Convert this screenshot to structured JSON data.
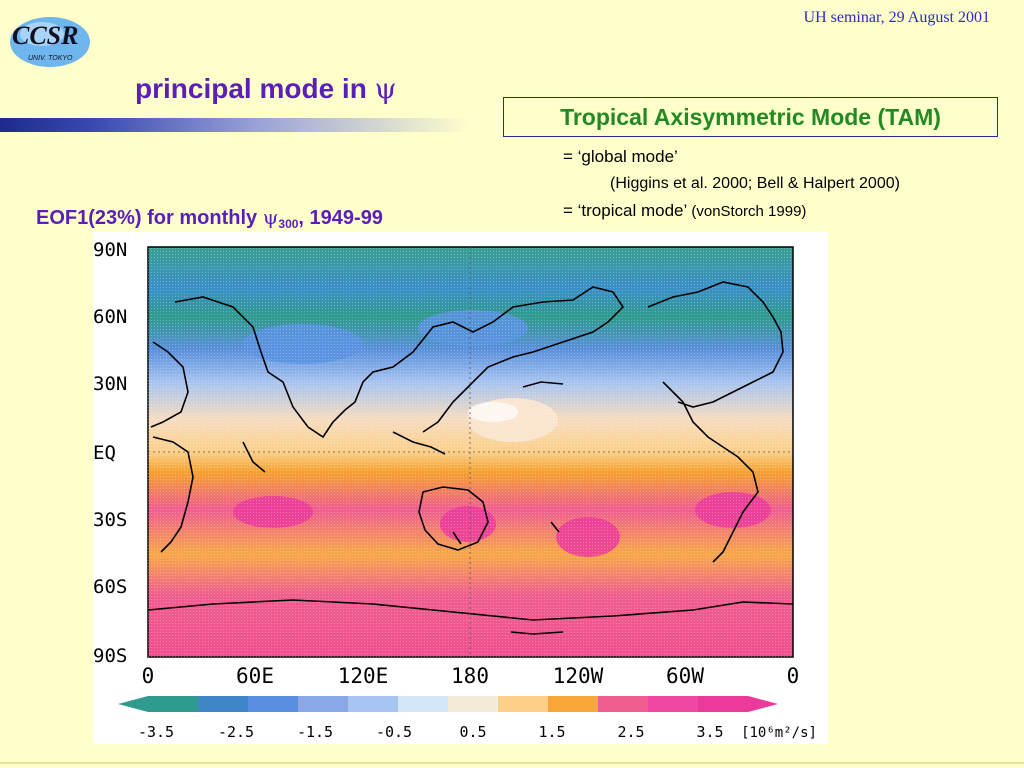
{
  "header": {
    "logo_text": "CCSR",
    "logo_subtext": "UNIV. TOKYO",
    "date": "UH seminar, 29 August 2001"
  },
  "title": {
    "text": "principal mode in",
    "symbol": "ψ"
  },
  "tam_box": {
    "label": "Tropical Axisymmetric Mode (TAM)"
  },
  "notes": {
    "line1": "= ‘global mode’",
    "line2": "(Higgins et al. 2000; Bell & Halpert 2000)",
    "line3_main": "= ‘tropical mode’",
    "line3_ref": "(vonStorch 1999)"
  },
  "eof_caption": {
    "prefix": "EOF1(23%) for monthly",
    "symbol": "ψ",
    "subscript": "300",
    "suffix": ", 1949-99"
  },
  "map": {
    "lat_labels": [
      "90N",
      "60N",
      "30N",
      "EQ",
      "30S",
      "60S",
      "90S"
    ],
    "lon_labels": [
      "0",
      "60E",
      "120E",
      "180",
      "120W",
      "60W",
      "0"
    ],
    "colorbar_ticks": [
      "-3.5",
      "-2.5",
      "-1.5",
      "-0.5",
      "0.5",
      "1.5",
      "2.5",
      "3.5"
    ],
    "colorbar_unit": "[10⁶m²/s]",
    "colorbar_colors": [
      "#2f9a8e",
      "#3f86c8",
      "#5a8ede",
      "#8aa8e8",
      "#a8c4f0",
      "#d4e6fa",
      "#f4ecd8",
      "#fcd08a",
      "#f8a838",
      "#f05e90",
      "#f048a0",
      "#ec3a9c"
    ]
  }
}
